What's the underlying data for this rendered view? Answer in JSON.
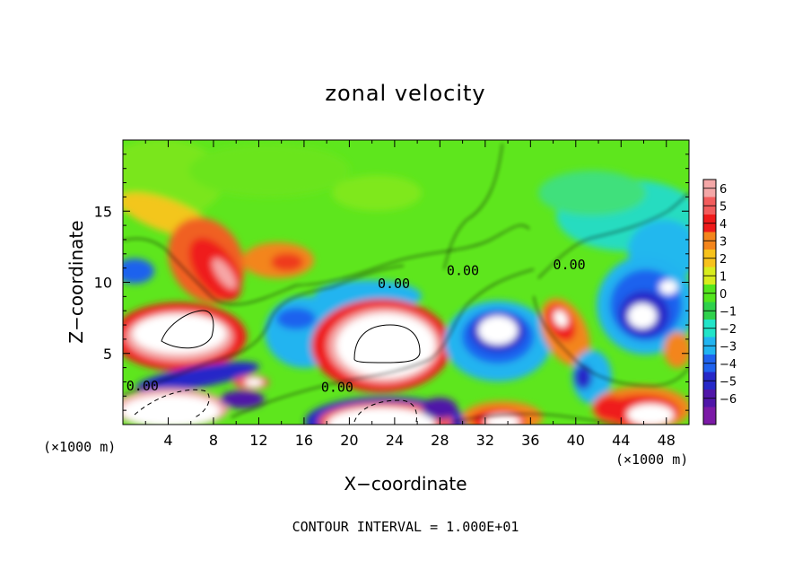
{
  "chart_data": {
    "type": "heatmap",
    "title": "zonal velocity",
    "xlabel": "X−coordinate",
    "ylabel": "Z−coordinate",
    "x_unit_left": "(×1000 m)",
    "x_unit_right": "(×1000 m)",
    "footer": "CONTOUR INTERVAL = 1.000E+01",
    "xlim": [
      0,
      50
    ],
    "ylim": [
      0,
      20
    ],
    "x_ticks": [
      4,
      8,
      12,
      16,
      20,
      24,
      28,
      32,
      36,
      40,
      44,
      48
    ],
    "y_ticks": [
      5,
      10,
      15
    ],
    "colorbar": {
      "levels": [
        6,
        5,
        4,
        3,
        2,
        1,
        0,
        -1,
        -2,
        -3,
        -4,
        -5,
        -6
      ],
      "colors": [
        "#f4a7a7",
        "#f25c5c",
        "#ef1a1a",
        "#f3851c",
        "#f7c21b",
        "#d8ec1d",
        "#54e61d",
        "#2fd14c",
        "#21e4c8",
        "#21b4f0",
        "#1f62ee",
        "#2628c8",
        "#5016a8",
        "#7b1aa6"
      ]
    },
    "contour_labels": [
      {
        "text": "0.00",
        "x": 0.3,
        "y": 2.4
      },
      {
        "text": "0.00",
        "x": 17.5,
        "y": 2.3
      },
      {
        "text": "0.00",
        "x": 22.5,
        "y": 9.6
      },
      {
        "text": "0.00",
        "x": 28.6,
        "y": 10.5
      },
      {
        "text": "0.00",
        "x": 38.0,
        "y": 10.9
      }
    ]
  }
}
